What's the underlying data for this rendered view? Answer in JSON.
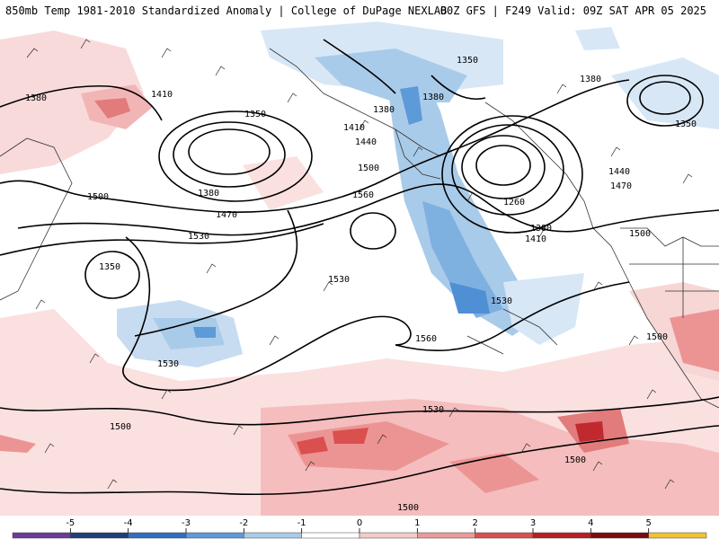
{
  "header": {
    "title": "850mb Temp 1981-2010 Standardized Anomaly | College of DuPage NEXLAB",
    "run_info": "00Z GFS | F249 Valid: 09Z SAT APR 05 2025"
  },
  "map": {
    "contour_labels": [
      "1380",
      "1410",
      "1350",
      "1380",
      "1410",
      "1440",
      "1500",
      "1560",
      "1380",
      "1470",
      "1530",
      "1500",
      "1350",
      "1380",
      "1350",
      "1260",
      "1380",
      "1410",
      "1440",
      "1470",
      "1500",
      "1380",
      "1350",
      "1530",
      "1530",
      "1560",
      "1530",
      "1500",
      "1500",
      "1500",
      "1500",
      "1530"
    ]
  },
  "legend": {
    "ticks": [
      "-5",
      "-4",
      "-3",
      "-2",
      "-1",
      "0",
      "1",
      "2",
      "3",
      "4",
      "5"
    ],
    "colors": [
      "#6a3d9a",
      "#1f3d7a",
      "#2f6fc0",
      "#5d9ad8",
      "#a9cbea",
      "#ffffff",
      "#f4c9c9",
      "#ea9a9a",
      "#d9504f",
      "#b61f25",
      "#7a0b10",
      "#f2c230"
    ]
  }
}
